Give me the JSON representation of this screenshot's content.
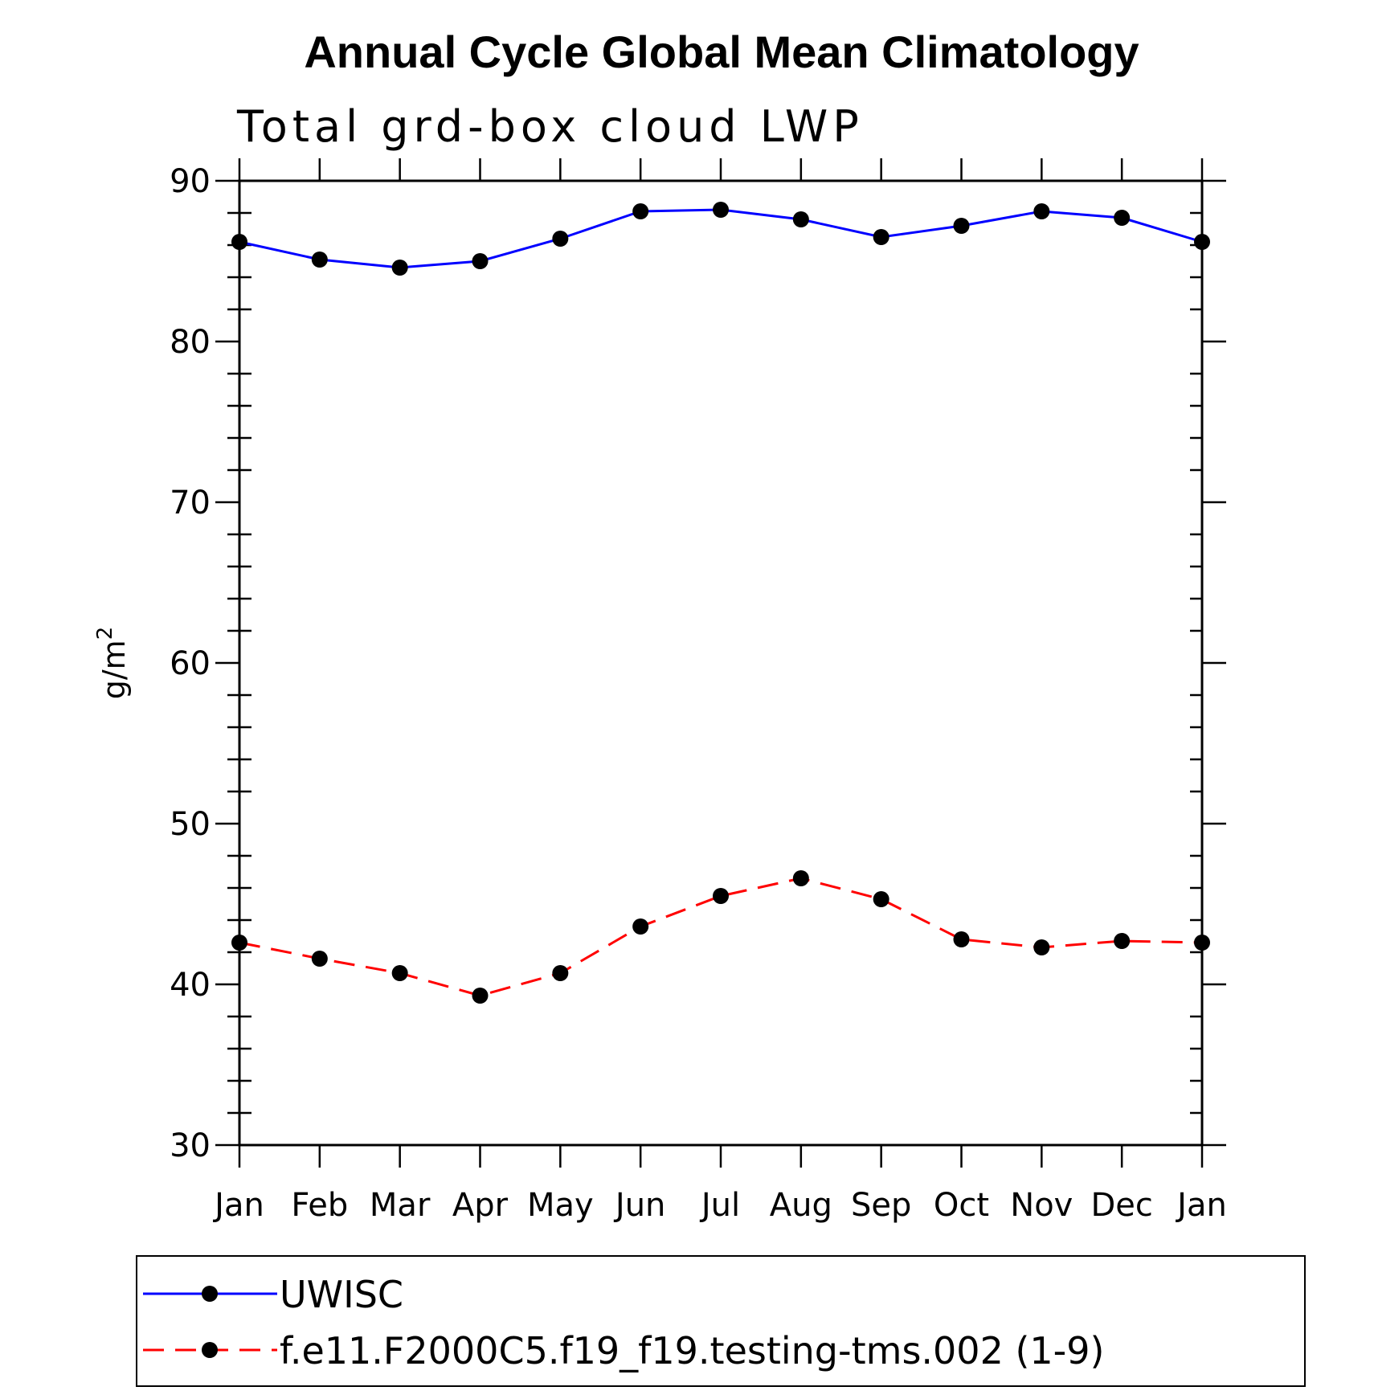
{
  "chart_data": {
    "type": "line",
    "title": "Annual Cycle Global Mean Climatology",
    "subtitle": "Total grd-box cloud LWP",
    "ylabel": "g/m",
    "ylabel_superscript": "2",
    "ylim": [
      30,
      90
    ],
    "yticks": [
      "30",
      "40",
      "50",
      "60",
      "70",
      "80",
      "90"
    ],
    "categories": [
      "Jan",
      "Feb",
      "Mar",
      "Apr",
      "May",
      "Jun",
      "Jul",
      "Aug",
      "Sep",
      "Oct",
      "Nov",
      "Dec",
      "Jan"
    ],
    "series": [
      {
        "name": "UWISC",
        "color": "#0000ff",
        "dash": "solid",
        "values": [
          86.2,
          85.1,
          84.6,
          85.0,
          86.4,
          88.1,
          88.2,
          87.6,
          86.5,
          87.2,
          88.1,
          87.7,
          86.2
        ]
      },
      {
        "name": "f.e11.F2000C5.f19_f19.testing-tms.002 (1-9)",
        "color": "#ff0000",
        "dash": "dashed",
        "values": [
          42.6,
          41.6,
          40.7,
          39.3,
          40.7,
          43.6,
          45.5,
          46.6,
          45.3,
          42.8,
          42.3,
          42.7,
          42.6
        ]
      }
    ],
    "legend_position": "bottom",
    "grid": false
  }
}
